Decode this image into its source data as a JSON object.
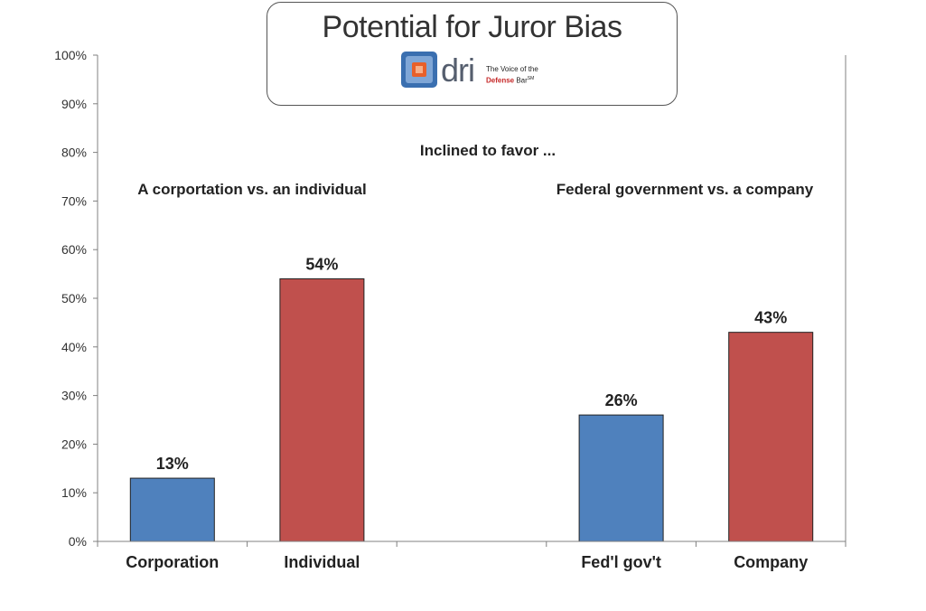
{
  "title": "Potential for Juror Bias",
  "logo": {
    "letters": "dri",
    "tagline_line1": "The Voice of the",
    "tagline_highlight": "Defense",
    "tagline_rest": " Bar",
    "tagline_mark": "SM",
    "colors": {
      "mark_blue": "#3a6fb0",
      "mark_orange": "#e8602a",
      "letters": "#555e6e"
    }
  },
  "chart_data": {
    "type": "bar",
    "categories": [
      "Corporation",
      "Individual",
      "",
      "Fed'l gov't",
      "Company"
    ],
    "values": [
      13,
      54,
      null,
      26,
      43
    ],
    "value_labels": [
      "13%",
      "54%",
      "",
      "26%",
      "43%"
    ],
    "bar_colors": [
      "#4f81bd",
      "#c0504d",
      "",
      "#4f81bd",
      "#c0504d"
    ],
    "ylim": [
      0,
      100
    ],
    "yticks": [
      "0%",
      "10%",
      "20%",
      "30%",
      "40%",
      "50%",
      "60%",
      "70%",
      "80%",
      "90%",
      "100%"
    ],
    "ytick_values": [
      0,
      10,
      20,
      30,
      40,
      50,
      60,
      70,
      80,
      90,
      100
    ],
    "annotations": {
      "center": "Inclined to favor ...",
      "left_group": "A corportation vs. an individual",
      "right_group": "Federal government vs. a company"
    },
    "grid": false,
    "legend": "none"
  }
}
